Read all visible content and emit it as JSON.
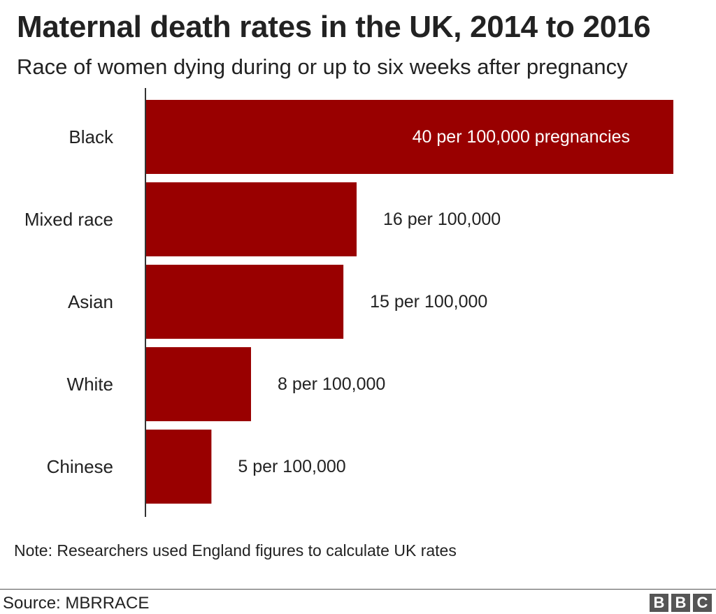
{
  "header": {
    "title": "Maternal death rates in the UK, 2014 to 2016",
    "subtitle": "Race of women dying during or up to six weeks after pregnancy"
  },
  "chart_data": {
    "type": "bar",
    "orientation": "horizontal",
    "title": "Maternal death rates in the UK, 2014 to 2016",
    "subtitle": "Race of women dying during or up to six weeks after pregnancy",
    "categories": [
      "Black",
      "Mixed race",
      "Asian",
      "White",
      "Chinese"
    ],
    "values": [
      40,
      16,
      15,
      8,
      5
    ],
    "data_labels": [
      "40 per 100,000 pregnancies",
      "16 per 100,000",
      "15 per 100,000",
      "8 per 100,000",
      "5 per 100,000"
    ],
    "unit": "per 100,000 pregnancies",
    "xlim": [
      0,
      40
    ],
    "grid": false,
    "bar_color": "#990000"
  },
  "footer": {
    "note": "Note: Researchers used England figures to calculate UK rates",
    "source": "Source: MBRRACE",
    "logo_letters": [
      "B",
      "B",
      "C"
    ]
  },
  "colors": {
    "bar": "#990000",
    "text": "#222222",
    "label_on_bar": "#ffffff",
    "axis": "#333333",
    "logo": "#555555"
  }
}
